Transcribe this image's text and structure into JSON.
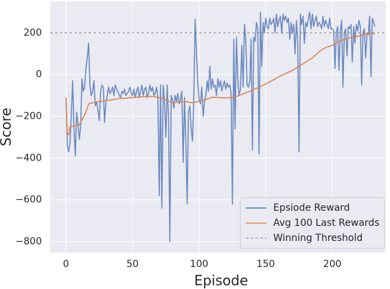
{
  "chart_data": {
    "type": "line",
    "xlabel": "Episode",
    "ylabel": "Score",
    "xlim": [
      -11.9,
      240.2
    ],
    "ylim": [
      -853,
      351
    ],
    "xticks": [
      0,
      50,
      100,
      150,
      200
    ],
    "yticks": [
      {
        "value": -800,
        "label": "−800"
      },
      {
        "value": -600,
        "label": "−600"
      },
      {
        "value": -400,
        "label": "−400"
      },
      {
        "value": -200,
        "label": "−200"
      },
      0,
      200
    ],
    "grid": true,
    "legend": "lower right",
    "series": [
      {
        "name": "Epsiode Reward",
        "color": "#4c72b0",
        "x": [
          0,
          1,
          2,
          3,
          4,
          5,
          6,
          7,
          8,
          9,
          10,
          11,
          12,
          13,
          14,
          15,
          16,
          17,
          18,
          19,
          20,
          21,
          22,
          23,
          24,
          25,
          26,
          27,
          28,
          29,
          30,
          31,
          32,
          33,
          34,
          35,
          36,
          37,
          38,
          39,
          40,
          41,
          42,
          43,
          44,
          45,
          46,
          47,
          48,
          49,
          50,
          51,
          52,
          53,
          54,
          55,
          56,
          57,
          58,
          59,
          60,
          61,
          62,
          63,
          64,
          65,
          66,
          67,
          68,
          69,
          70,
          71,
          72,
          73,
          74,
          75,
          76,
          77,
          78,
          79,
          80,
          81,
          82,
          83,
          84,
          85,
          86,
          87,
          88,
          89,
          90,
          91,
          92,
          93,
          94,
          95,
          96,
          97,
          98,
          99,
          100,
          101,
          102,
          103,
          104,
          105,
          106,
          107,
          108,
          109,
          110,
          111,
          112,
          113,
          114,
          115,
          116,
          117,
          118,
          119,
          120,
          121,
          122,
          123,
          124,
          125,
          126,
          127,
          128,
          129,
          130,
          131,
          132,
          133,
          134,
          135,
          136,
          137,
          138,
          139,
          140,
          141,
          142,
          143,
          144,
          145,
          146,
          147,
          148,
          149,
          150,
          151,
          152,
          153,
          154,
          155,
          156,
          157,
          158,
          159,
          160,
          161,
          162,
          163,
          164,
          165,
          166,
          167,
          168,
          169,
          170,
          171,
          172,
          173,
          174,
          175,
          176,
          177,
          178,
          179,
          180,
          181,
          182,
          183,
          184,
          185,
          186,
          187,
          188,
          189,
          190,
          191,
          192,
          193,
          194,
          195,
          196,
          197,
          198,
          199,
          200,
          201,
          202,
          203,
          204,
          205,
          206,
          207,
          208,
          209,
          210,
          211,
          212,
          213,
          214,
          215,
          216,
          217,
          218,
          219,
          220,
          221,
          222,
          223,
          224,
          225,
          226,
          227,
          228,
          229,
          230,
          231,
          232
        ],
        "values": [
          -110,
          -340,
          -370,
          -330,
          -200,
          -30,
          -250,
          -390,
          -180,
          -230,
          -310,
          -250,
          -20,
          -80,
          -60,
          30,
          80,
          150,
          -50,
          -100,
          -80,
          -30,
          -150,
          -130,
          -170,
          -220,
          -80,
          -50,
          -60,
          -230,
          -130,
          -100,
          -60,
          -90,
          -80,
          -60,
          -100,
          -50,
          -70,
          -80,
          -100,
          -110,
          -80,
          -90,
          -70,
          -100,
          -90,
          -80,
          -60,
          -90,
          -100,
          -70,
          -110,
          -80,
          -60,
          -110,
          -80,
          -50,
          -100,
          -70,
          -60,
          -110,
          -90,
          -50,
          -80,
          -60,
          -100,
          -90,
          -60,
          -110,
          -580,
          -50,
          -640,
          -50,
          -130,
          -300,
          -50,
          -200,
          -800,
          -100,
          -120,
          -160,
          -100,
          -130,
          -90,
          -140,
          -120,
          -80,
          -420,
          -110,
          -320,
          -620,
          -180,
          -150,
          -260,
          -320,
          -100,
          265,
          100,
          -40,
          -120,
          -140,
          -60,
          -200,
          -130,
          -100,
          -30,
          -80,
          40,
          -70,
          -20,
          -60,
          -50,
          -100,
          -20,
          -60,
          -30,
          -80,
          -50,
          -30,
          -70,
          -40,
          -60,
          -50,
          -90,
          -620,
          170,
          -260,
          180,
          -20,
          -100,
          -70,
          140,
          -60,
          240,
          170,
          -50,
          -60,
          -30,
          170,
          -360,
          180,
          160,
          250,
          220,
          -380,
          300,
          40,
          250,
          200,
          270,
          230,
          220,
          270,
          240,
          250,
          270,
          200,
          290,
          230,
          260,
          280,
          200,
          290,
          260,
          280,
          250,
          270,
          170,
          250,
          200,
          240,
          100,
          260,
          160,
          -370,
          290,
          240,
          280,
          150,
          250,
          230,
          270,
          300,
          220,
          290,
          230,
          260,
          280,
          230,
          250,
          240,
          220,
          280,
          230,
          260,
          240,
          220,
          270,
          220,
          220,
          210,
          30,
          200,
          230,
          20,
          210,
          260,
          -60,
          200,
          220,
          90,
          230,
          220,
          240,
          60,
          230,
          150,
          240,
          210,
          260,
          230,
          -50,
          200,
          220,
          80,
          200,
          190,
          280,
          -10,
          270,
          250,
          230
        ]
      },
      {
        "name": "Avg 100 Last Rewards",
        "color": "#dd8452",
        "x": [
          0,
          1,
          2,
          3,
          10,
          15,
          17,
          20,
          30,
          40,
          50,
          60,
          65,
          70,
          75,
          78,
          80,
          90,
          95,
          100,
          105,
          110,
          120,
          125,
          130,
          140,
          150,
          160,
          170,
          175,
          180,
          185,
          190,
          195,
          200,
          205,
          210,
          215,
          220,
          225,
          230,
          232
        ],
        "values": [
          -110,
          -280,
          -290,
          -250,
          -240,
          -180,
          -140,
          -135,
          -125,
          -115,
          -110,
          -105,
          -105,
          -110,
          -120,
          -130,
          -135,
          -130,
          -135,
          -128,
          -120,
          -108,
          -112,
          -110,
          -100,
          -75,
          -45,
          -10,
          20,
          40,
          60,
          80,
          110,
          130,
          140,
          160,
          170,
          180,
          185,
          195,
          198,
          195
        ]
      }
    ],
    "threshold": {
      "name": "Winning Threshold",
      "value": 200,
      "color": "#999999"
    }
  }
}
